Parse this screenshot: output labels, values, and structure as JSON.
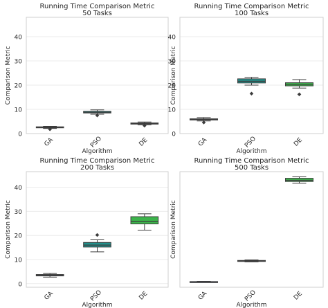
{
  "figure": {
    "background": "#ffffff",
    "grid": true,
    "grid_color": "#ebebeb",
    "spine_color": "#cfcfcf",
    "box_edge_color": "#3c3c3c"
  },
  "chart_data": [
    {
      "type": "box",
      "title": "Running Time Comparison Metric",
      "subtitle": "50 Tasks",
      "xlabel": "Algorithm",
      "ylabel": "Comparison Metric",
      "categories": [
        "GA",
        "PSO",
        "DE"
      ],
      "colors": [
        "#3b4e8c",
        "#21918c",
        "#3cb44b"
      ],
      "ylim": [
        0,
        48
      ],
      "yticks": [
        0,
        10,
        20,
        30,
        40
      ],
      "grid": true,
      "boxes": [
        {
          "min": 2.1,
          "q1": 2.4,
          "median": 2.6,
          "q3": 2.8,
          "max": 3.0,
          "outliers": [
            1.8
          ]
        },
        {
          "min": 8.0,
          "q1": 8.5,
          "median": 8.8,
          "q3": 9.2,
          "max": 9.8,
          "outliers": [
            7.5
          ]
        },
        {
          "min": 3.6,
          "q1": 3.9,
          "median": 4.1,
          "q3": 4.4,
          "max": 4.8,
          "outliers": [
            3.3
          ]
        }
      ]
    },
    {
      "type": "box",
      "title": "Running Time Comparison Metric",
      "subtitle": "100 Tasks",
      "xlabel": "Algorithm",
      "ylabel": "Comparison Metric",
      "categories": [
        "GA",
        "PSO",
        "DE"
      ],
      "colors": [
        "#3b4e8c",
        "#21918c",
        "#3cb44b"
      ],
      "ylim": [
        0,
        48
      ],
      "yticks": [
        0,
        10,
        20,
        30,
        40
      ],
      "grid": true,
      "boxes": [
        {
          "min": 5.2,
          "q1": 5.6,
          "median": 5.9,
          "q3": 6.1,
          "max": 6.6,
          "outliers": [
            4.6
          ]
        },
        {
          "min": 20.0,
          "q1": 20.9,
          "median": 21.6,
          "q3": 22.6,
          "max": 23.2,
          "outliers": [
            16.5
          ]
        },
        {
          "min": 18.8,
          "q1": 19.7,
          "median": 20.4,
          "q3": 21.0,
          "max": 22.3,
          "outliers": [
            16.2
          ]
        }
      ]
    },
    {
      "type": "box",
      "title": "Running Time Comparison Metric",
      "subtitle": "200 Tasks",
      "xlabel": "Algorithm",
      "ylabel": "Comparison Metric",
      "categories": [
        "GA",
        "PSO",
        "DE"
      ],
      "colors": [
        "#3b4e8c",
        "#21918c",
        "#3cb44b"
      ],
      "ylim": [
        -1.5,
        46.5
      ],
      "yticks": [
        0,
        10,
        20,
        30,
        40
      ],
      "grid": true,
      "boxes": [
        {
          "min": 2.7,
          "q1": 3.2,
          "median": 3.5,
          "q3": 3.8,
          "max": 4.2,
          "outliers": []
        },
        {
          "min": 13.2,
          "q1": 15.2,
          "median": 16.0,
          "q3": 17.1,
          "max": 18.2,
          "outliers": [
            20.2
          ]
        },
        {
          "min": 22.2,
          "q1": 24.8,
          "median": 25.8,
          "q3": 27.8,
          "max": 29.0,
          "outliers": []
        }
      ]
    },
    {
      "type": "box",
      "title": "Running Time Comparison Metric",
      "subtitle": "500 Tasks",
      "xlabel": "Algorithm",
      "ylabel": "Comparison Metric",
      "categories": [
        "GA",
        "PSO",
        "DE"
      ],
      "colors": [
        "#3b4e8c",
        "#21918c",
        "#3cb44b"
      ],
      "ylim": [
        -0.5,
        46.5
      ],
      "yticks": [],
      "grid": true,
      "boxes": [
        {
          "min": 1.5,
          "q1": 1.6,
          "median": 1.7,
          "q3": 1.8,
          "max": 1.9,
          "outliers": []
        },
        {
          "min": 9.8,
          "q1": 10.0,
          "median": 10.2,
          "q3": 10.4,
          "max": 10.6,
          "outliers": []
        },
        {
          "min": 41.8,
          "q1": 42.5,
          "median": 43.0,
          "q3": 43.8,
          "max": 44.4,
          "outliers": []
        }
      ]
    }
  ]
}
